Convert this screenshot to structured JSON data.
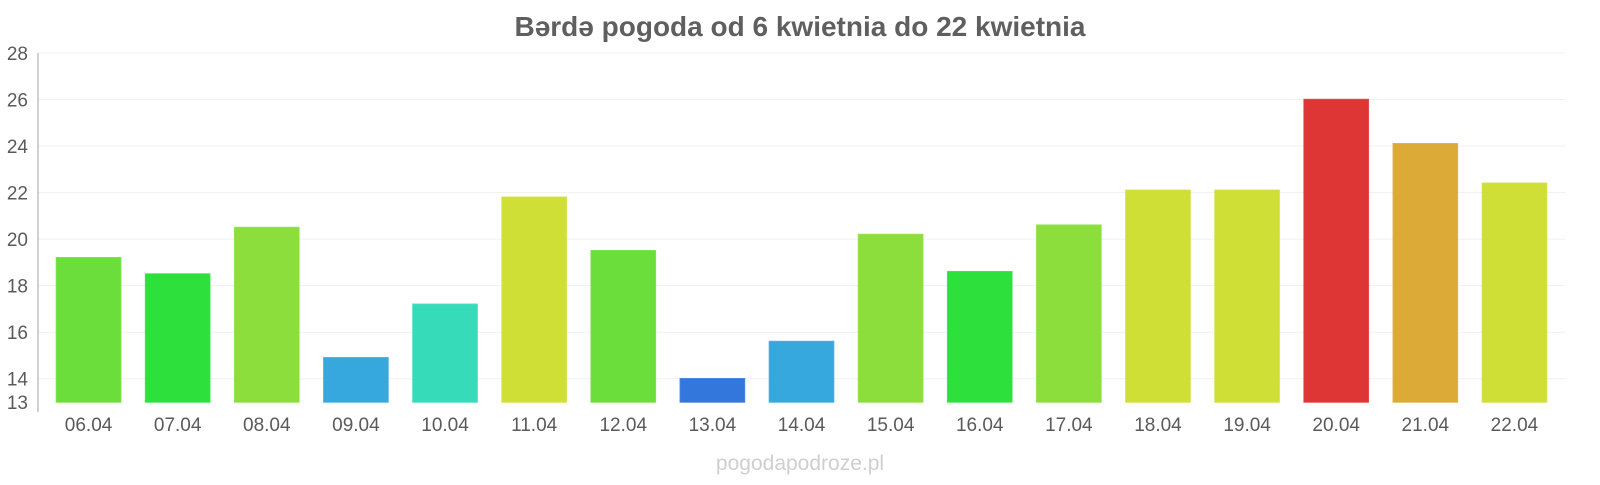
{
  "chart_data": {
    "type": "bar",
    "title": "Bərdə pogoda od 6 kwietnia do 22 kwietnia",
    "categories": [
      "06.04",
      "07.04",
      "08.04",
      "09.04",
      "10.04",
      "11.04",
      "12.04",
      "13.04",
      "14.04",
      "15.04",
      "16.04",
      "17.04",
      "18.04",
      "19.04",
      "20.04",
      "21.04",
      "22.04"
    ],
    "values": [
      19.2,
      18.5,
      20.5,
      14.9,
      17.2,
      21.8,
      19.5,
      14.0,
      15.6,
      20.2,
      18.6,
      20.6,
      22.1,
      22.1,
      26.0,
      24.1,
      22.4
    ],
    "colors": [
      "#6bde3b",
      "#2ee03b",
      "#8bde3b",
      "#36a8dd",
      "#36dcb9",
      "#cfdf36",
      "#6bde3b",
      "#3477dc",
      "#36a8dd",
      "#8bde3b",
      "#2ee03b",
      "#8bde3b",
      "#cfdf36",
      "#cfdf36",
      "#de3535",
      "#dcaa36",
      "#cfdf36"
    ],
    "yticks": [
      "13",
      "14",
      "16",
      "18",
      "20",
      "22",
      "24",
      "26",
      "28"
    ],
    "ylim": [
      13,
      28
    ],
    "xlabel": "",
    "ylabel": "",
    "grid": true,
    "legend": "none"
  },
  "watermark": "pogodapodroze.pl"
}
